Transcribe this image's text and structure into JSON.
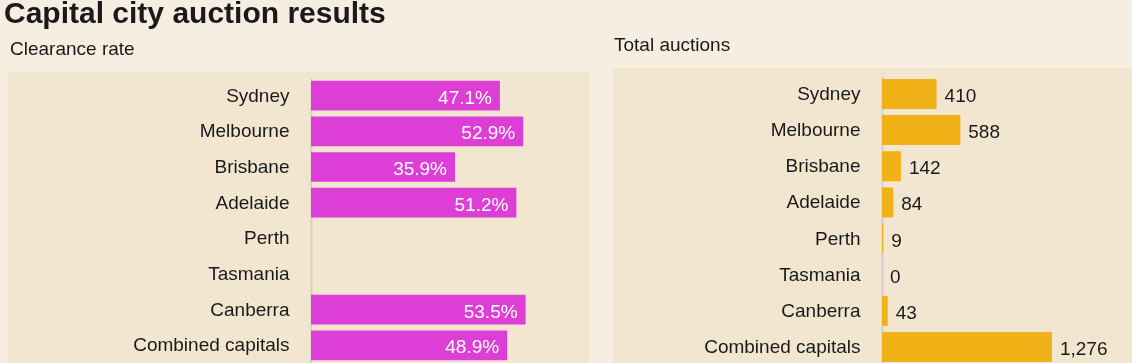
{
  "chart_data": [
    {
      "type": "bar",
      "title": "Capital city auction results",
      "subtitle": "Clearance rate",
      "orientation": "horizontal",
      "tick_labels": "y",
      "categories": [
        "Sydney",
        "Melbourne",
        "Brisbane",
        "Adelaide",
        "Perth",
        "Tasmania",
        "Canberra",
        "Combined capitals"
      ],
      "values": [
        47.1,
        52.9,
        35.9,
        51.2,
        null,
        null,
        53.5,
        48.9
      ],
      "value_labels": [
        "47.1%",
        "52.9%",
        "35.9%",
        "51.2%",
        null,
        null,
        "53.5%",
        "48.9%"
      ],
      "color": "#dd3fd6"
    },
    {
      "type": "bar",
      "title": "Total auctions",
      "orientation": "horizontal",
      "tick_labels": "y",
      "categories": [
        "Sydney",
        "Melbourne",
        "Brisbane",
        "Adelaide",
        "Perth",
        "Tasmania",
        "Canberra",
        "Combined capitals"
      ],
      "values": [
        410,
        588,
        142,
        84,
        9,
        0,
        43,
        1276
      ],
      "value_labels": [
        "410",
        "588",
        "142",
        "84",
        "9",
        "0",
        "43",
        "1,276"
      ],
      "color": "#f0b216"
    }
  ]
}
